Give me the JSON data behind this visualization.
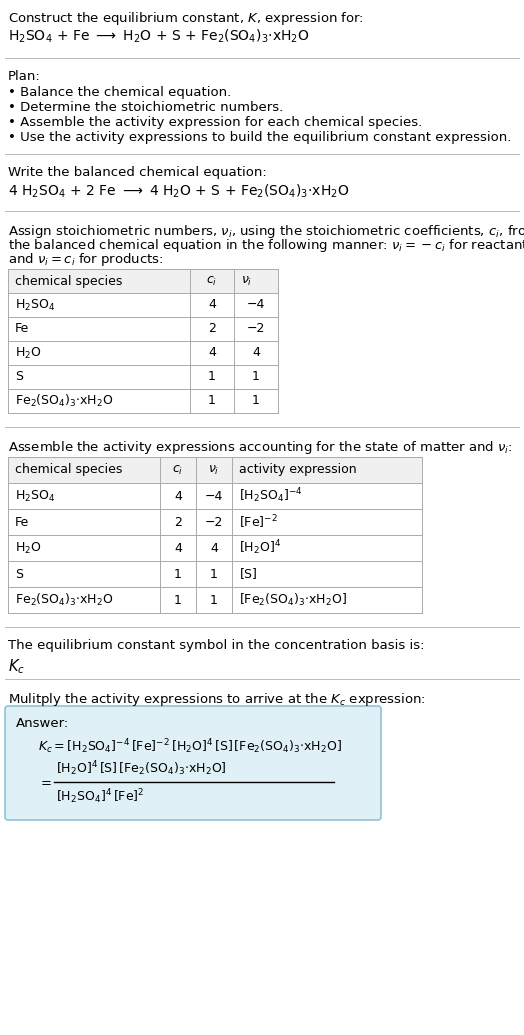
{
  "title_line1": "Construct the equilibrium constant, $K$, expression for:",
  "title_line2": "$\\mathrm{H_2SO_4}$ + Fe $\\longrightarrow$ $\\mathrm{H_2O}$ + S + $\\mathrm{Fe_2(SO_4)_3{\\cdot}xH_2O}$",
  "plan_header": "Plan:",
  "plan_items": [
    "Balance the chemical equation.",
    "Determine the stoichiometric numbers.",
    "Assemble the activity expression for each chemical species.",
    "Use the activity expressions to build the equilibrium constant expression."
  ],
  "balanced_header": "Write the balanced chemical equation:",
  "balanced_eq": "4 $\\mathrm{H_2SO_4}$ + 2 Fe $\\longrightarrow$ 4 $\\mathrm{H_2O}$ + S + $\\mathrm{Fe_2(SO_4)_3{\\cdot}xH_2O}$",
  "stoich_header1": "Assign stoichiometric numbers, $\\nu_i$, using the stoichiometric coefficients, $c_i$, from",
  "stoich_header2": "the balanced chemical equation in the following manner: $\\nu_i = -c_i$ for reactants",
  "stoich_header3": "and $\\nu_i = c_i$ for products:",
  "table1_headers": [
    "chemical species",
    "$c_i$",
    "$\\nu_i$"
  ],
  "table1_rows": [
    [
      "$\\mathrm{H_2SO_4}$",
      "4",
      "−4"
    ],
    [
      "Fe",
      "2",
      "−2"
    ],
    [
      "$\\mathrm{H_2O}$",
      "4",
      "4"
    ],
    [
      "S",
      "1",
      "1"
    ],
    [
      "$\\mathrm{Fe_2(SO_4)_3{\\cdot}xH_2O}$",
      "1",
      "1"
    ]
  ],
  "activity_header": "Assemble the activity expressions accounting for the state of matter and $\\nu_i$:",
  "table2_headers": [
    "chemical species",
    "$c_i$",
    "$\\nu_i$",
    "activity expression"
  ],
  "table2_rows": [
    [
      "$\\mathrm{H_2SO_4}$",
      "4",
      "−4",
      "$[\\mathrm{H_2SO_4}]^{-4}$"
    ],
    [
      "Fe",
      "2",
      "−2",
      "$[\\mathrm{Fe}]^{-2}$"
    ],
    [
      "$\\mathrm{H_2O}$",
      "4",
      "4",
      "$[\\mathrm{H_2O}]^4$"
    ],
    [
      "S",
      "1",
      "1",
      "$[\\mathrm{S}]$"
    ],
    [
      "$\\mathrm{Fe_2(SO_4)_3{\\cdot}xH_2O}$",
      "1",
      "1",
      "$[\\mathrm{Fe_2(SO_4)_3{\\cdot}xH_2O}]$"
    ]
  ],
  "kc_header": "The equilibrium constant symbol in the concentration basis is:",
  "kc_symbol": "$K_c$",
  "multiply_header": "Mulitply the activity expressions to arrive at the $K_c$ expression:",
  "answer_label": "Answer:",
  "answer_line1": "$K_c = [\\mathrm{H_2SO_4}]^{-4}\\,[\\mathrm{Fe}]^{-2}\\,[\\mathrm{H_2O}]^4\\,[\\mathrm{S}]\\,[\\mathrm{Fe_2(SO_4)_3{\\cdot}xH_2O}]$",
  "answer_num": "$[\\mathrm{H_2O}]^4\\,[\\mathrm{S}]\\,[\\mathrm{Fe_2(SO_4)_3{\\cdot}xH_2O}]$",
  "answer_den": "$[\\mathrm{H_2SO_4}]^4\\,[\\mathrm{Fe}]^2$",
  "bg_color": "#ffffff",
  "answer_box_bg": "#dff0f7",
  "answer_box_border": "#90c4d8",
  "text_color": "#000000",
  "line_color": "#bbbbbb",
  "font_size": 9.5,
  "small_font": 9.0
}
